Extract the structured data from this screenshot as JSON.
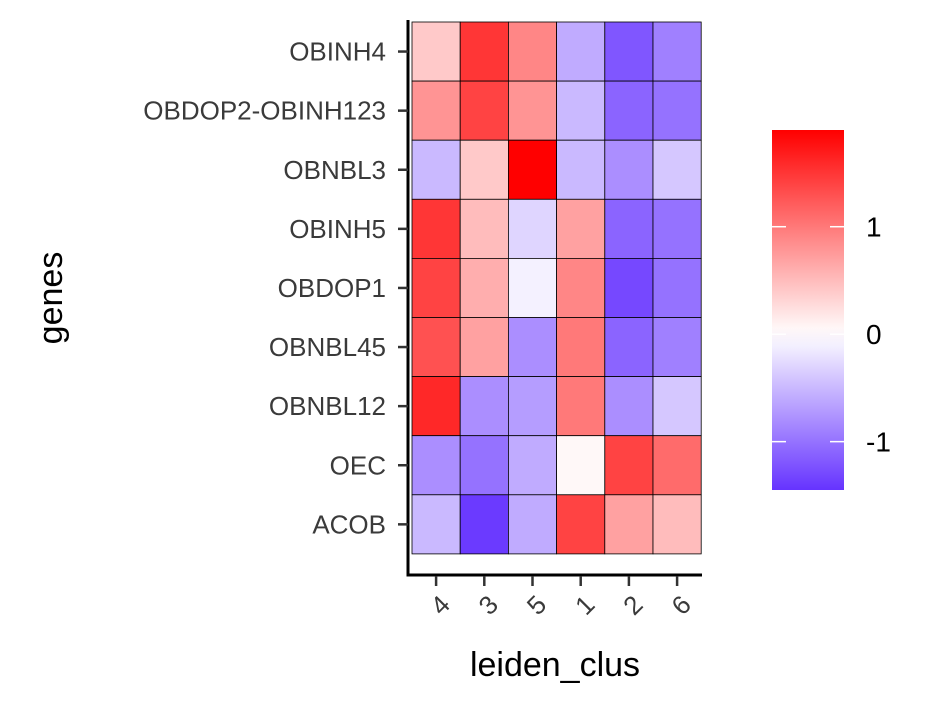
{
  "chart_data": {
    "type": "heatmap",
    "xlabel": "leiden_clus",
    "ylabel": "genes",
    "x_categories": [
      "4",
      "3",
      "5",
      "1",
      "2",
      "6"
    ],
    "y_categories": [
      "OBINH4",
      "OBDOP2-OBINH123",
      "OBNBL3",
      "OBINH5",
      "OBDOP1",
      "OBNBL45",
      "OBNBL12",
      "OEC",
      "ACOB"
    ],
    "values": [
      [
        0.4,
        1.5,
        0.9,
        -0.6,
        -1.2,
        -0.9
      ],
      [
        0.8,
        1.4,
        0.8,
        -0.5,
        -1.1,
        -1.0
      ],
      [
        -0.5,
        0.4,
        1.9,
        -0.5,
        -0.8,
        -0.4
      ],
      [
        1.5,
        0.5,
        -0.3,
        0.7,
        -1.1,
        -1.0
      ],
      [
        1.4,
        0.6,
        -0.1,
        0.9,
        -1.3,
        -1.0
      ],
      [
        1.3,
        0.7,
        -0.8,
        1.0,
        -1.1,
        -0.9
      ],
      [
        1.6,
        -0.8,
        -0.7,
        1.0,
        -0.8,
        -0.4
      ],
      [
        -0.8,
        -1.0,
        -0.6,
        0.05,
        1.4,
        1.1
      ],
      [
        -0.5,
        -1.4,
        -0.6,
        1.4,
        0.7,
        0.5
      ]
    ],
    "color_scale": {
      "min": -1.45,
      "max": 1.9,
      "low_color": "#6633ff",
      "mid_color": "#ffffff",
      "high_color": "#ff0000",
      "midpoint": 0
    },
    "legend": {
      "position": "right",
      "ticks": [
        {
          "value": 1,
          "label": "1"
        },
        {
          "value": 0,
          "label": "0"
        },
        {
          "value": -1,
          "label": "-1"
        }
      ]
    },
    "grid": false
  }
}
